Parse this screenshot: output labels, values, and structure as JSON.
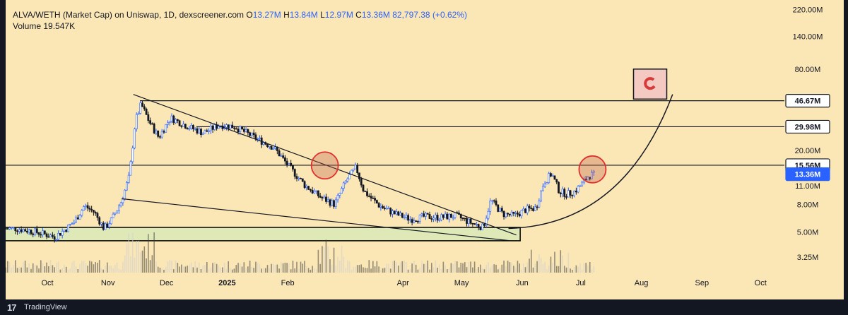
{
  "header": {
    "pair": "ALVA/WETH (Market Cap) on Uniswap, 1D, dexscreener.com",
    "open_label": "O",
    "open": "13.27M",
    "high_label": "H",
    "high": "13.84M",
    "low_label": "L",
    "low": "12.97M",
    "close_label": "C",
    "close": "13.36M",
    "change": "82,797.38 (+0.62%)",
    "volume_label": "Volume",
    "volume": "19.547K"
  },
  "footer": {
    "logo": "17",
    "brand": "TradingView"
  },
  "colors": {
    "background": "#fbe6b6",
    "up": "#ffffff",
    "down": "#131722",
    "accent": "#2962ff",
    "circle": "#e03030",
    "volume_up": "#d0d0d0",
    "volume_down": "#404040",
    "support_zone": "#d8e8b8"
  },
  "chart_data": {
    "type": "candlestick",
    "yscale": "log",
    "ylim": [
      2.5,
      230
    ],
    "y_unit": "M",
    "y_tick_labels": [
      "220.00M",
      "140.00M",
      "80.00M",
      "20.00M",
      "8.00M",
      "5.00M",
      "3.25M"
    ],
    "x_tick_labels": [
      "Oct",
      "Nov",
      "Dec",
      "2025",
      "Feb",
      "Apr",
      "May",
      "Jun",
      "Jul",
      "Aug",
      "Sep",
      "Oct"
    ],
    "price_tags": [
      {
        "label": "46.67M",
        "value": 46.67,
        "style": "outlined"
      },
      {
        "label": "29.98M",
        "value": 29.98,
        "style": "outlined"
      },
      {
        "label": "15.56M",
        "value": 15.56,
        "style": "outlined"
      },
      {
        "label": "13.36M",
        "value": 13.36,
        "style": "current"
      }
    ],
    "partly_hidden_tag": "11.00M",
    "close_series": [
      {
        "x": "2024-09-15",
        "y": 5.3
      },
      {
        "x": "2024-09-25",
        "y": 5.0
      },
      {
        "x": "2024-10-05",
        "y": 4.6
      },
      {
        "x": "2024-10-10",
        "y": 5.2
      },
      {
        "x": "2024-10-15",
        "y": 6.0
      },
      {
        "x": "2024-10-20",
        "y": 7.8
      },
      {
        "x": "2024-10-25",
        "y": 7.0
      },
      {
        "x": "2024-10-30",
        "y": 5.3
      },
      {
        "x": "2024-11-03",
        "y": 6.2
      },
      {
        "x": "2024-11-08",
        "y": 8.5
      },
      {
        "x": "2024-11-12",
        "y": 13.0
      },
      {
        "x": "2024-11-15",
        "y": 33.0
      },
      {
        "x": "2024-11-18",
        "y": 44.0
      },
      {
        "x": "2024-11-22",
        "y": 33.0
      },
      {
        "x": "2024-11-27",
        "y": 25.0
      },
      {
        "x": "2024-12-03",
        "y": 35.0
      },
      {
        "x": "2024-12-12",
        "y": 30.0
      },
      {
        "x": "2024-12-20",
        "y": 27.0
      },
      {
        "x": "2024-12-28",
        "y": 31.0
      },
      {
        "x": "2025-01-05",
        "y": 30.0
      },
      {
        "x": "2025-01-15",
        "y": 25.0
      },
      {
        "x": "2025-01-25",
        "y": 21.0
      },
      {
        "x": "2025-02-02",
        "y": 15.0
      },
      {
        "x": "2025-02-10",
        "y": 11.0
      },
      {
        "x": "2025-02-18",
        "y": 9.0
      },
      {
        "x": "2025-02-25",
        "y": 8.0
      },
      {
        "x": "2025-03-03",
        "y": 12.0
      },
      {
        "x": "2025-03-08",
        "y": 15.0
      },
      {
        "x": "2025-03-12",
        "y": 10.0
      },
      {
        "x": "2025-03-20",
        "y": 7.8
      },
      {
        "x": "2025-03-28",
        "y": 6.8
      },
      {
        "x": "2025-04-05",
        "y": 6.2
      },
      {
        "x": "2025-04-12",
        "y": 6.5
      },
      {
        "x": "2025-04-20",
        "y": 6.4
      },
      {
        "x": "2025-04-28",
        "y": 6.6
      },
      {
        "x": "2025-05-05",
        "y": 5.9
      },
      {
        "x": "2025-05-12",
        "y": 5.4
      },
      {
        "x": "2025-05-16",
        "y": 8.6
      },
      {
        "x": "2025-05-22",
        "y": 6.8
      },
      {
        "x": "2025-05-28",
        "y": 6.6
      },
      {
        "x": "2025-06-03",
        "y": 7.3
      },
      {
        "x": "2025-06-08",
        "y": 7.5
      },
      {
        "x": "2025-06-12",
        "y": 11.5
      },
      {
        "x": "2025-06-16",
        "y": 13.5
      },
      {
        "x": "2025-06-20",
        "y": 10.0
      },
      {
        "x": "2025-06-24",
        "y": 9.5
      },
      {
        "x": "2025-06-28",
        "y": 10.0
      },
      {
        "x": "2025-07-02",
        "y": 11.5
      },
      {
        "x": "2025-07-05",
        "y": 13.0
      },
      {
        "x": "2025-07-08",
        "y": 13.36
      }
    ],
    "horizontal_lines": [
      46.67,
      29.98,
      15.56
    ],
    "annotations": [
      {
        "type": "falling_wedge_upper",
        "from": {
          "x": "2024-11-14",
          "y": 52
        },
        "to": {
          "x": "2025-05-29",
          "y": 4.75
        }
      },
      {
        "type": "falling_wedge_lower",
        "from": {
          "x": "2024-11-08",
          "y": 8.8
        },
        "to": {
          "x": "2025-05-26",
          "y": 4.3
        }
      },
      {
        "type": "support_zone",
        "x_from": "2024-08-15",
        "x_to": "2025-05-31",
        "y_from": 4.3,
        "y_to": 5.4
      },
      {
        "type": "circle",
        "x": "2025-02-20",
        "y": 15.5
      },
      {
        "type": "circle",
        "x": "2025-07-07",
        "y": 14.5
      },
      {
        "type": "parabolic_curve",
        "from": {
          "x": "2025-05-25",
          "y": 5.3
        },
        "to": {
          "x": "2025-08-17",
          "y": 52
        }
      },
      {
        "type": "icon_box",
        "icon": "magnet-icon",
        "x_from": "2025-07-28",
        "x_to": "2025-08-14",
        "y_from": 48,
        "y_to": 80
      }
    ],
    "volume_label": "Volume"
  }
}
